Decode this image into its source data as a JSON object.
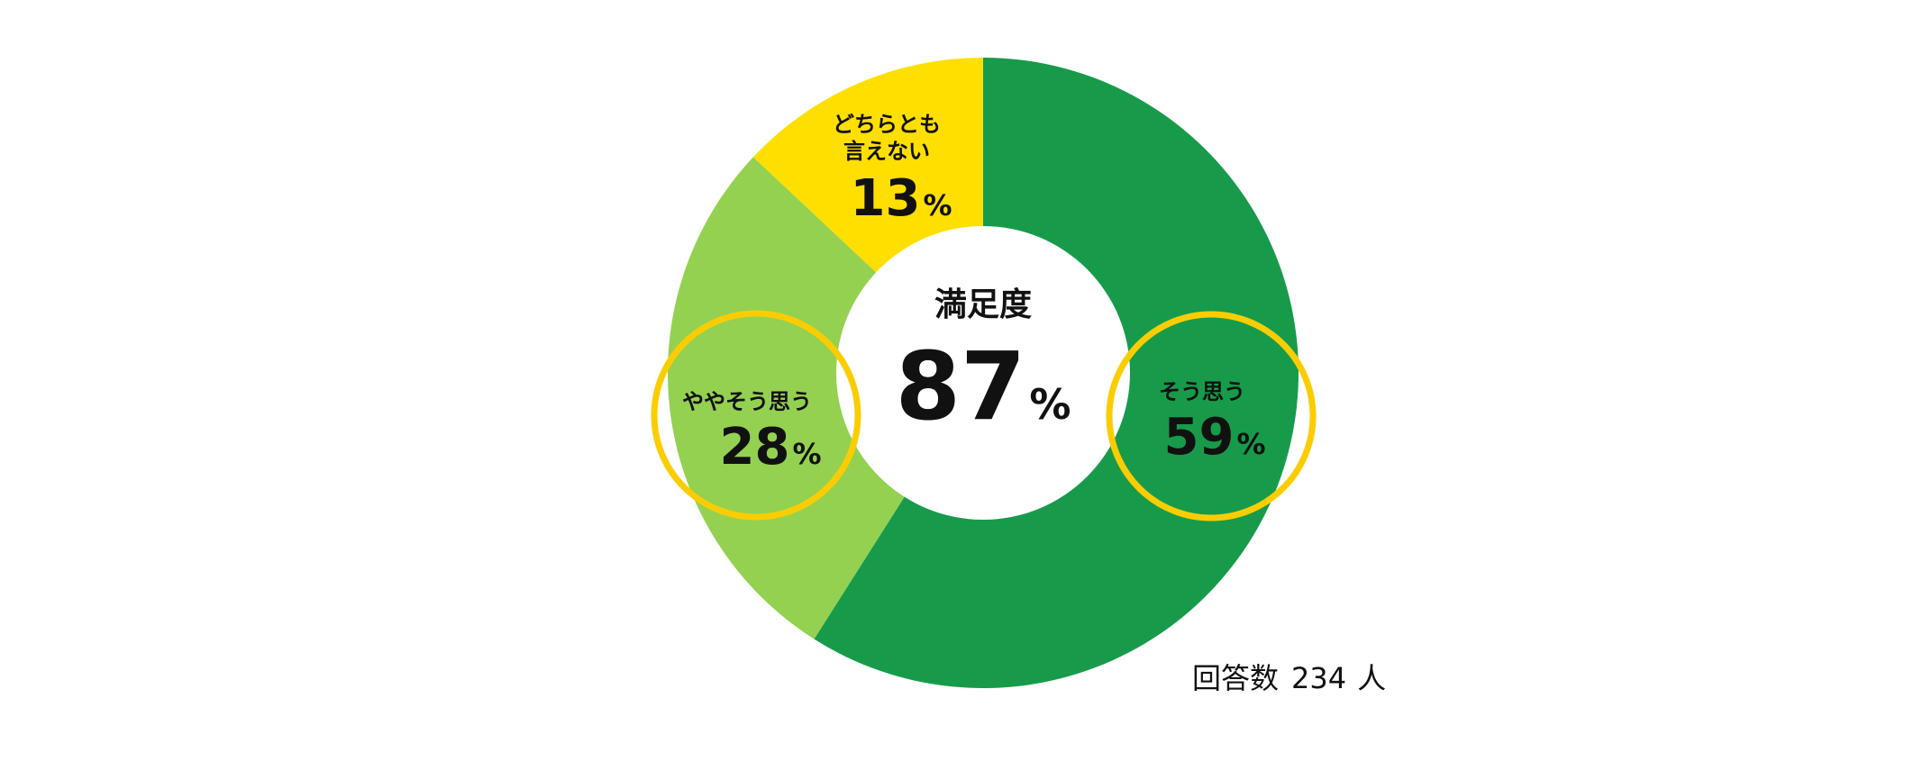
{
  "chart_data": {
    "type": "pie",
    "variant": "donut",
    "categories": [
      "そう思う",
      "ややそう思う",
      "どちらとも言えない"
    ],
    "values": [
      59,
      28,
      13
    ],
    "value_suffix": "%",
    "colors": [
      "#179b4b",
      "#94d150",
      "#ffdf00"
    ],
    "highlight_ring_color": "#fbcd00",
    "highlighted_categories": [
      "そう思う",
      "ややそう思う"
    ],
    "center": {
      "title": "満足度",
      "value": "87",
      "suffix": "%"
    },
    "legend": "none"
  },
  "slice_labels": [
    {
      "lines": [
        "そう思う"
      ],
      "value": "59",
      "suffix": "%"
    },
    {
      "lines": [
        "ややそう思う"
      ],
      "value": "28",
      "suffix": "%"
    },
    {
      "lines": [
        "どちらとも",
        "言えない"
      ],
      "value": "13",
      "suffix": "%"
    }
  ],
  "respondents": {
    "label": "回答数",
    "count": "234",
    "unit": "人"
  }
}
